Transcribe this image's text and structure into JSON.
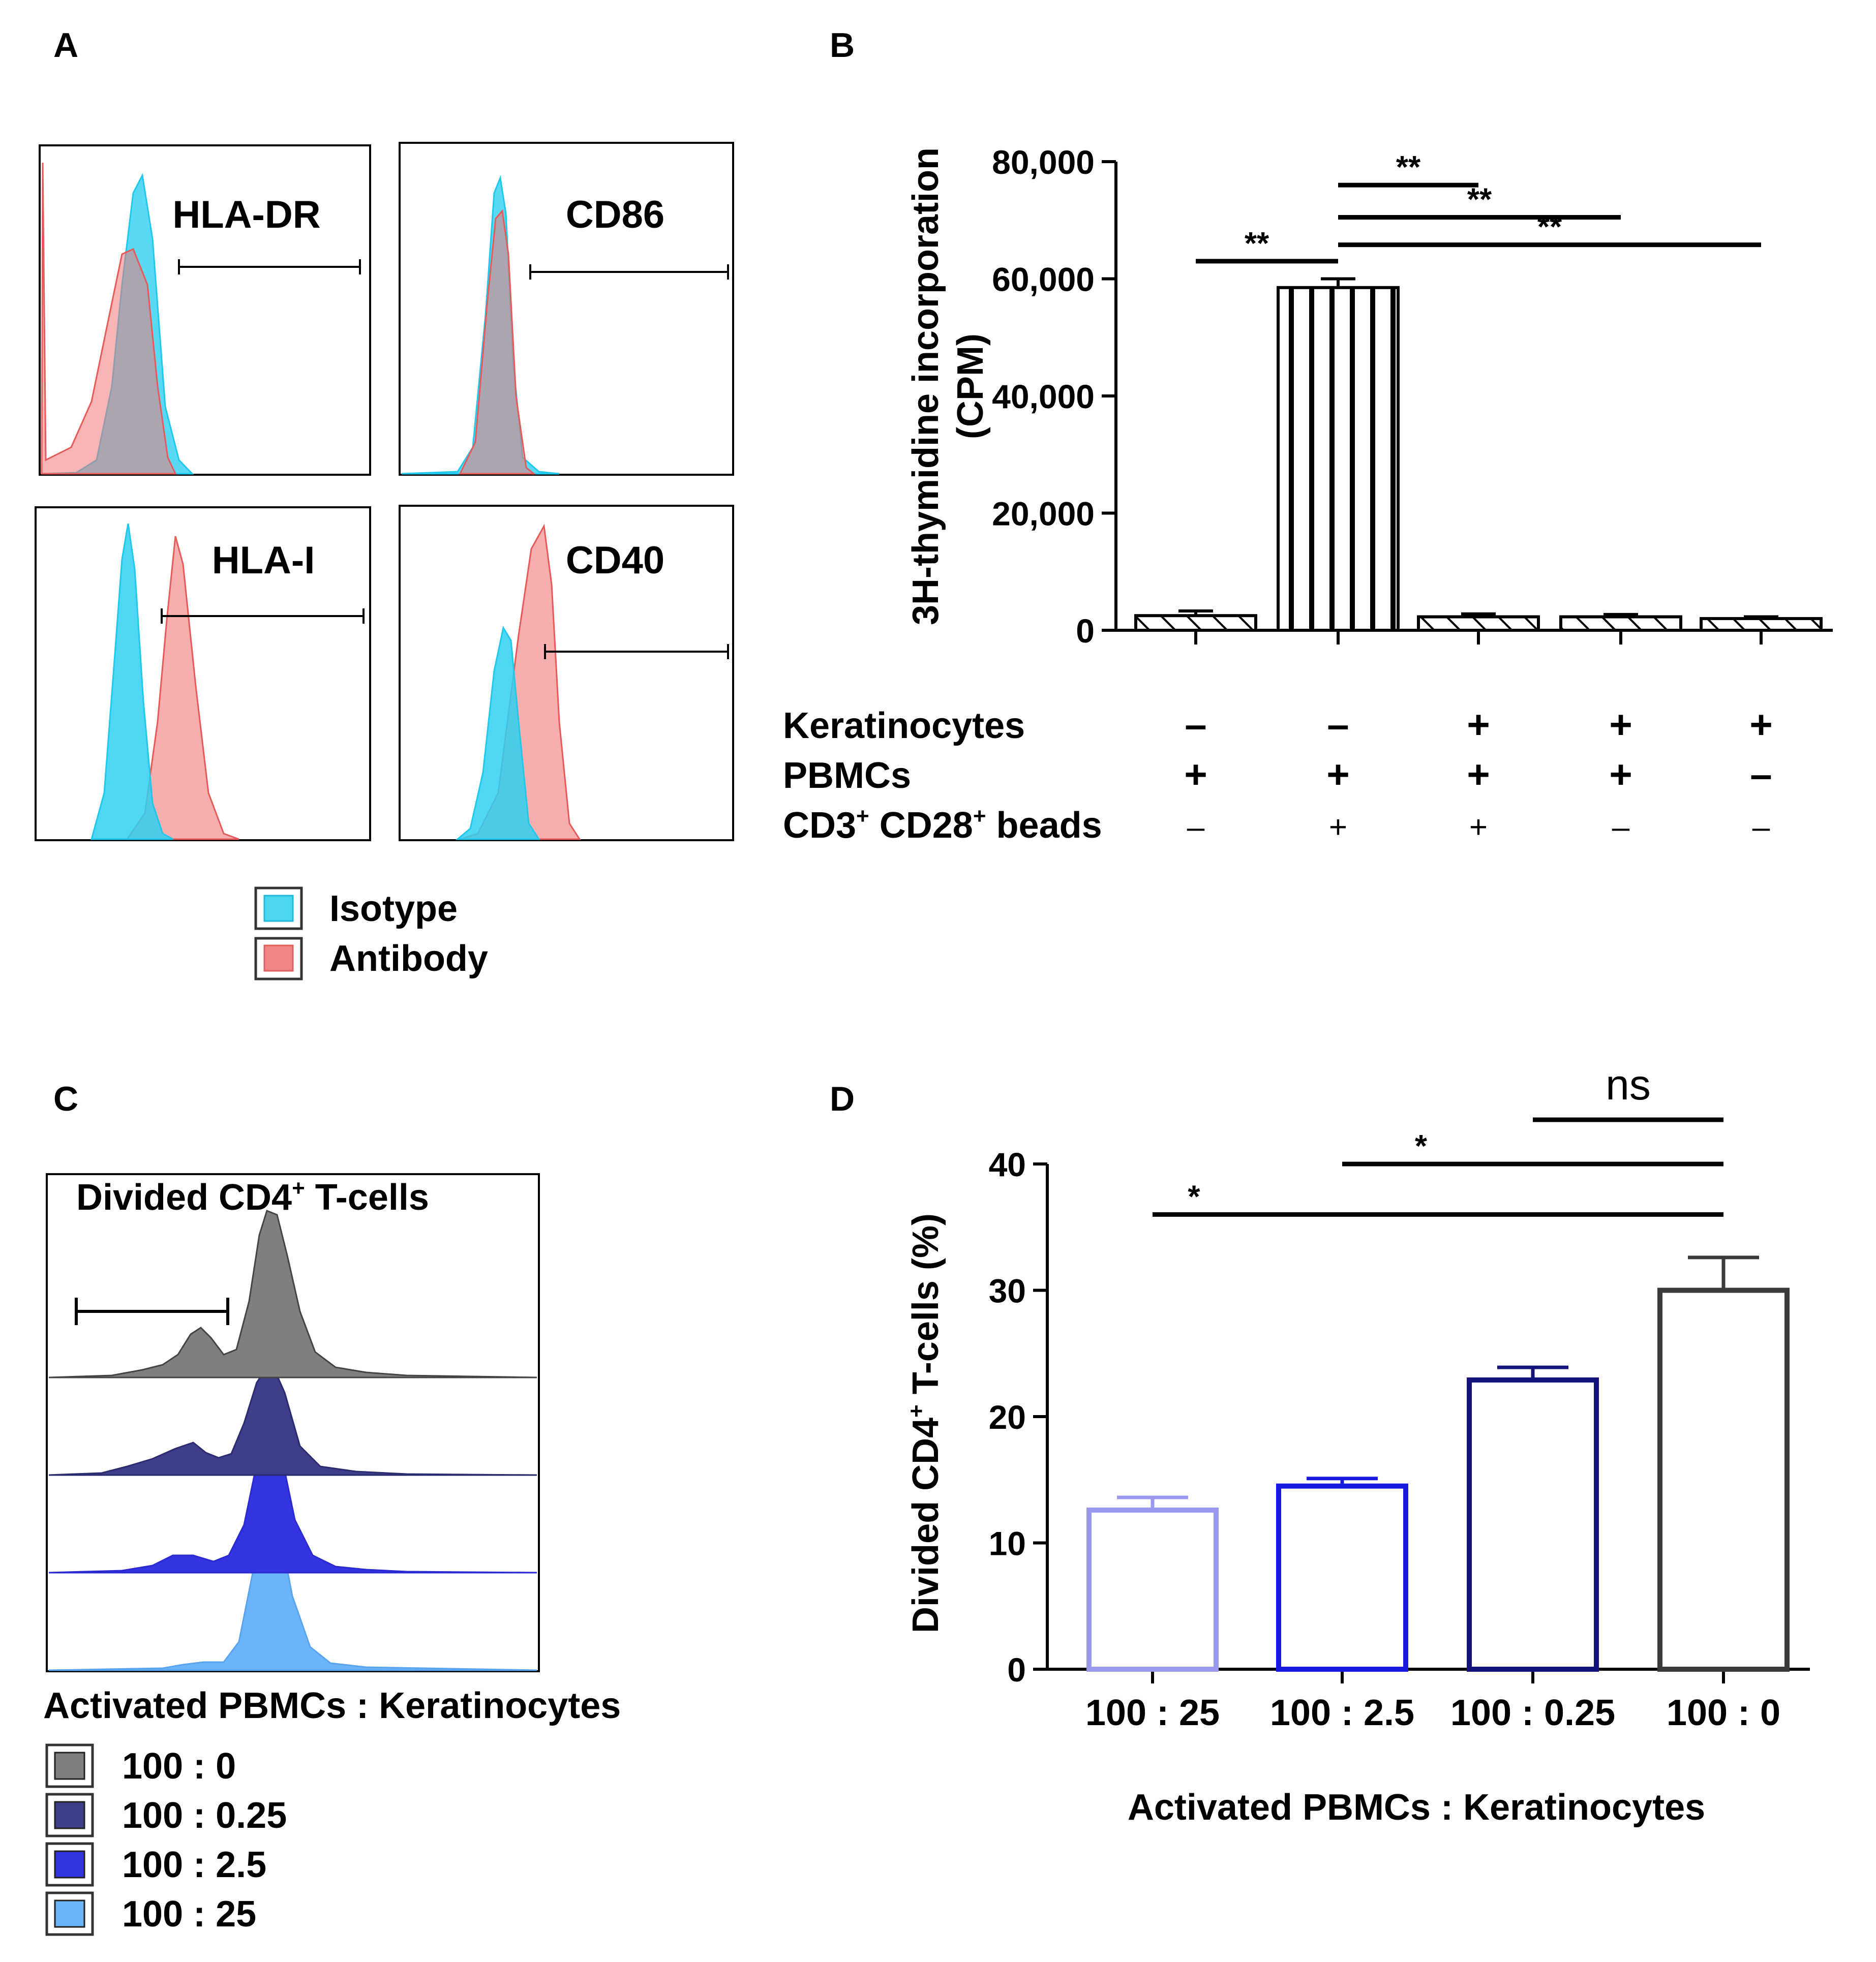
{
  "panels": {
    "A": {
      "label": "A",
      "histograms": [
        {
          "marker": "HLA-DR"
        },
        {
          "marker": "CD86"
        },
        {
          "marker": "HLA-I"
        },
        {
          "marker": "CD40"
        }
      ],
      "legend": [
        {
          "label": "Isotype",
          "color": "#4dd6f0"
        },
        {
          "label": "Antibody",
          "color": "#f08585"
        }
      ]
    },
    "B": {
      "label": "B"
    },
    "C": {
      "label": "C",
      "title": "Divided CD4",
      "title_sup": "+",
      "title_suffix": " T-cells",
      "legend_title": "Activated PBMCs : Keratinocytes",
      "legend": [
        {
          "label": "100 : 0",
          "color": "#7f7f7f"
        },
        {
          "label": "100 : 0.25",
          "color": "#3d3d8a"
        },
        {
          "label": "100 : 2.5",
          "color": "#3333e0"
        },
        {
          "label": "100 : 25",
          "color": "#6cb4f8"
        }
      ]
    },
    "D": {
      "label": "D"
    }
  },
  "chart_data": [
    {
      "id": "B",
      "type": "bar",
      "ylabel": "3H-thymidine incorporation",
      "ylabel2": "(CPM)",
      "ylim": [
        0,
        80000
      ],
      "yticks": [
        "0",
        "20,000",
        "40,000",
        "60,000",
        "80,000"
      ],
      "ytick_values": [
        0,
        20000,
        40000,
        60000,
        80000
      ],
      "values": [
        2500,
        58500,
        2300,
        2300,
        2000
      ],
      "errors": [
        800,
        1500,
        500,
        400,
        300
      ],
      "patterns": [
        "diag",
        "vert",
        "diag",
        "diag",
        "diag"
      ],
      "conditions": [
        {
          "name": "Keratinocytes",
          "values": [
            "–",
            "–",
            "+",
            "+",
            "+"
          ]
        },
        {
          "name": "PBMCs",
          "values": [
            "+",
            "+",
            "+",
            "+",
            "–"
          ]
        },
        {
          "name": "CD3",
          "sup1": "+",
          "mid": " CD28",
          "sup2": "+",
          "suffix": " beads",
          "values": [
            "–",
            "+",
            "+",
            "–",
            "–"
          ]
        }
      ],
      "significance": [
        {
          "from": 0,
          "to": 1,
          "level": 63000,
          "label": "**"
        },
        {
          "from": 1,
          "to": 2,
          "level": 76000,
          "label": "**"
        },
        {
          "from": 1,
          "to": 3,
          "level": 70500,
          "label": "**"
        },
        {
          "from": 1,
          "to": 4,
          "level": 65800,
          "label": "**"
        }
      ]
    },
    {
      "id": "D",
      "type": "bar",
      "categories": [
        "100 : 25",
        "100 : 2.5",
        "100 : 0.25",
        "100 : 0"
      ],
      "values": [
        12.6,
        14.5,
        22.9,
        30.0
      ],
      "errors": [
        1.0,
        0.6,
        1.0,
        2.6
      ],
      "colors": [
        "#9999ee",
        "#1a1adf",
        "#13137a",
        "#3a3a3a"
      ],
      "ylabel": "Divided CD4",
      "ylabel_sup": "+",
      "ylabel_suffix": " T-cells (%)",
      "xlabel": "Activated PBMCs : Keratinocytes",
      "ylim": [
        0,
        40
      ],
      "yticks": [
        "0",
        "10",
        "20",
        "30",
        "40"
      ],
      "ytick_values": [
        0,
        10,
        20,
        30,
        40
      ],
      "significance": [
        {
          "from": 0,
          "to": 3,
          "level": 36,
          "label": "*"
        },
        {
          "from": 1,
          "to": 3,
          "level": 40,
          "label": "*"
        },
        {
          "from": 2,
          "to": 3,
          "level": 43.5,
          "label": "ns"
        }
      ]
    }
  ]
}
